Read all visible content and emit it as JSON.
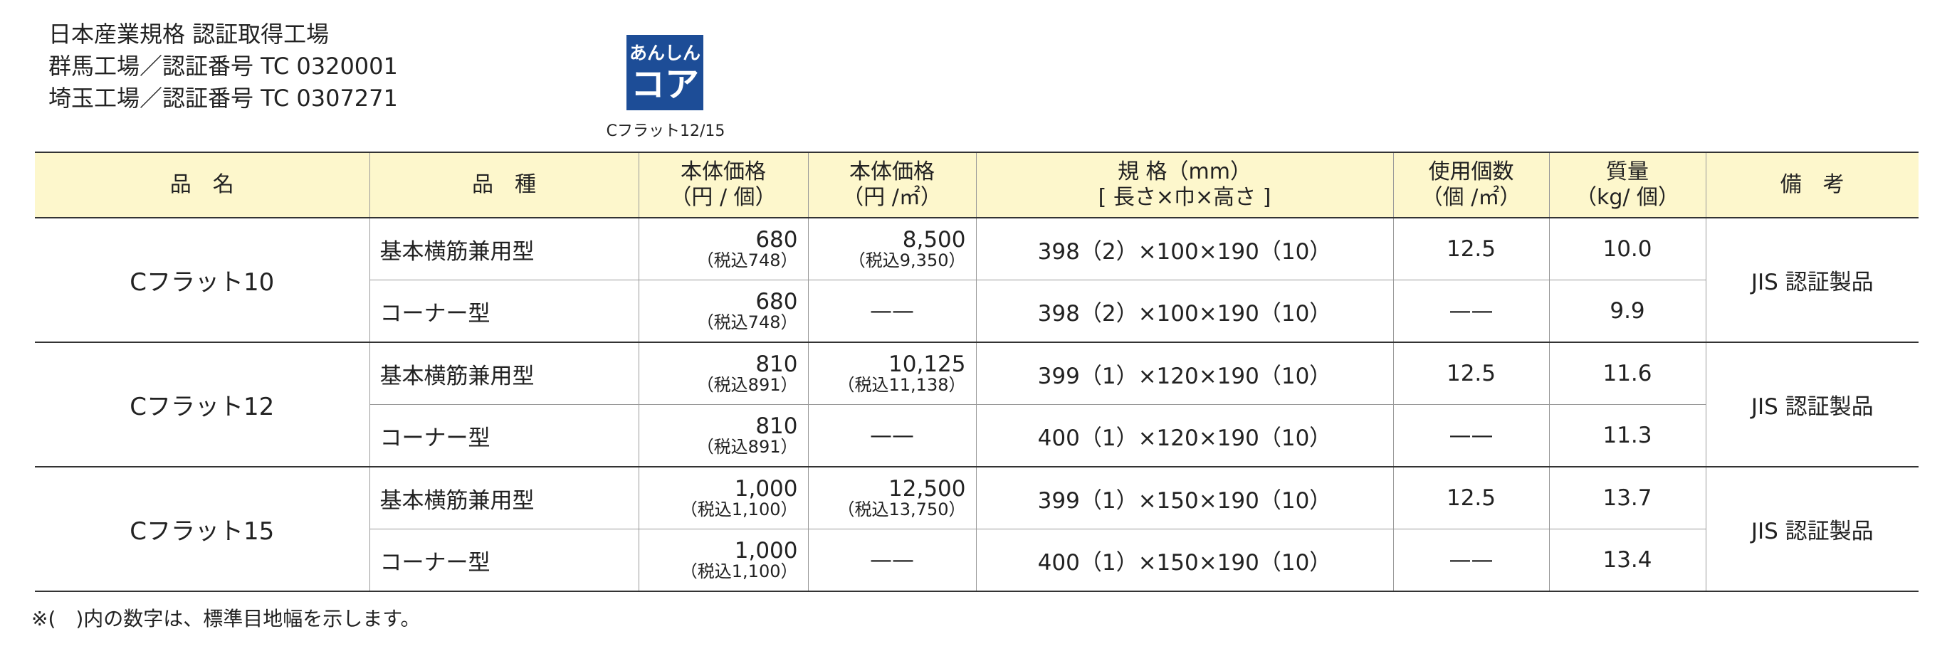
{
  "header": {
    "lines": [
      "日本産業規格 認証取得工場",
      "群馬工場／認証番号 TC 0320001",
      "埼玉工場／認証番号 TC 0307271"
    ]
  },
  "logo": {
    "line1": "あんしん",
    "line2": "コア",
    "caption": "Cフラット12/15"
  },
  "table": {
    "headers": [
      [
        "品　名"
      ],
      [
        "品　種"
      ],
      [
        "本体価格",
        "（円 / 個）"
      ],
      [
        "本体価格",
        "（円 /㎡）"
      ],
      [
        "規 格（mm）",
        "[ 長さ×巾×高さ ]"
      ],
      [
        "使用個数",
        "（個 /㎡）"
      ],
      [
        "質量",
        "（kg/ 個）"
      ],
      [
        "備　考"
      ]
    ],
    "groups": [
      {
        "name": "Cフラット10",
        "note": "JIS 認証製品",
        "items": [
          {
            "kind": "基本横筋兼用型",
            "price": "680",
            "price_tax": "（税込748）",
            "price_m2": "8,500",
            "price_m2_tax": "（税込9,350）",
            "size": "398（2）×100×190（10）",
            "count": "12.5",
            "weight": "10.0"
          },
          {
            "kind": "コーナー型",
            "price": "680",
            "price_tax": "（税込748）",
            "price_m2": "——",
            "size": "398（2）×100×190（10）",
            "count": "——",
            "weight": "9.9"
          }
        ]
      },
      {
        "name": "Cフラット12",
        "note": "JIS 認証製品",
        "items": [
          {
            "kind": "基本横筋兼用型",
            "price": "810",
            "price_tax": "（税込891）",
            "price_m2": "10,125",
            "price_m2_tax": "（税込11,138）",
            "size": "399（1）×120×190（10）",
            "count": "12.5",
            "weight": "11.6"
          },
          {
            "kind": "コーナー型",
            "price": "810",
            "price_tax": "（税込891）",
            "price_m2": "——",
            "size": "400（1）×120×190（10）",
            "count": "——",
            "weight": "11.3"
          }
        ]
      },
      {
        "name": "Cフラット15",
        "note": "JIS 認証製品",
        "items": [
          {
            "kind": "基本横筋兼用型",
            "price": "1,000",
            "price_tax": "（税込1,100）",
            "price_m2": "12,500",
            "price_m2_tax": "（税込13,750）",
            "size": "399（1）×150×190（10）",
            "count": "12.5",
            "weight": "13.7"
          },
          {
            "kind": "コーナー型",
            "price": "1,000",
            "price_tax": "（税込1,100）",
            "price_m2": "——",
            "size": "400（1）×150×190（10）",
            "count": "——",
            "weight": "13.4"
          }
        ]
      }
    ]
  },
  "footnote": "※(　)内の数字は、標準目地幅を示します。"
}
